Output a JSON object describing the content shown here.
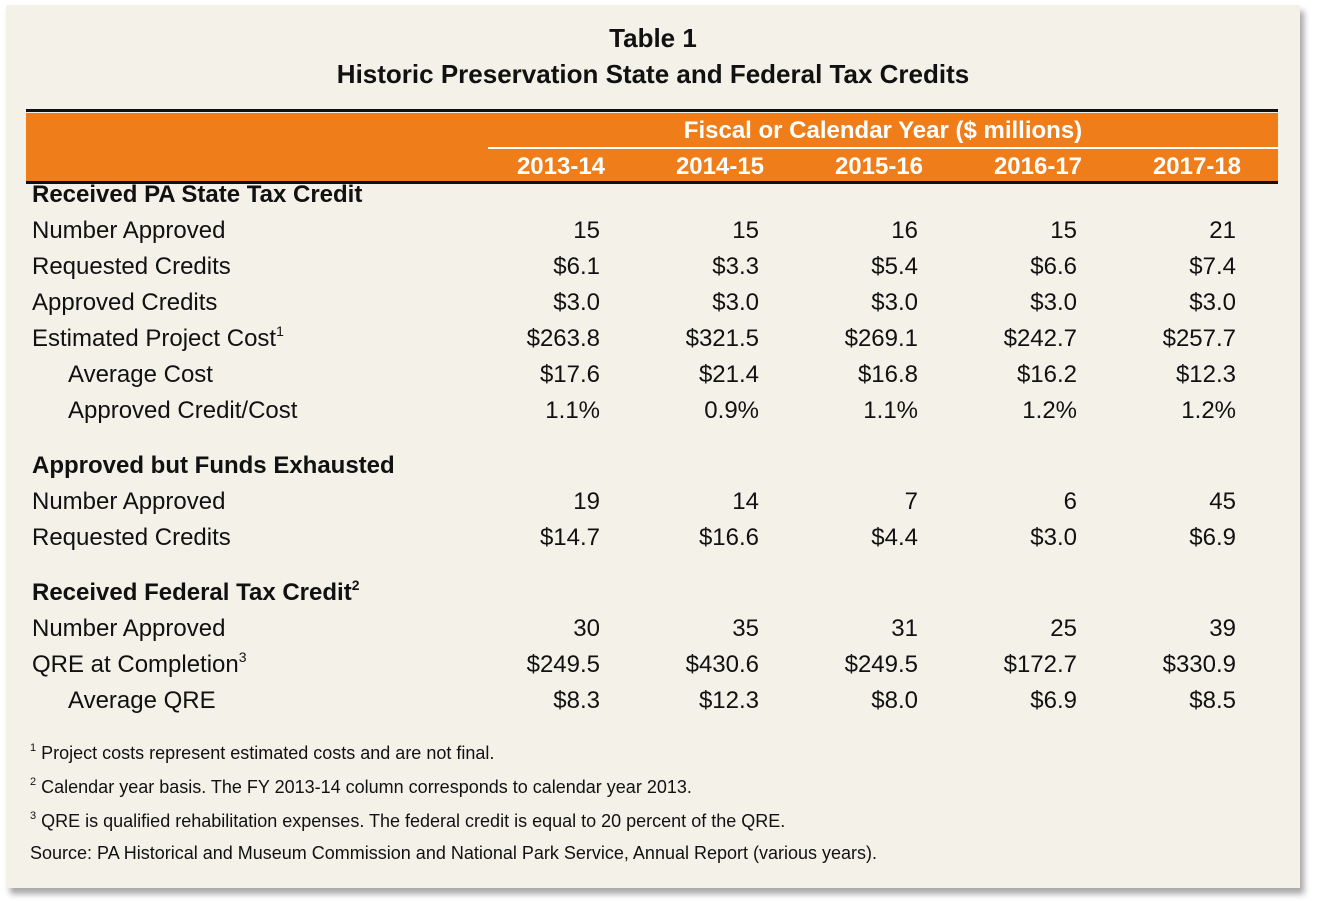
{
  "title": "Table 1",
  "subtitle": "Historic Preservation State and Federal Tax Credits",
  "header": {
    "span_label": "Fiscal or Calendar Year ($ millions)",
    "years": [
      "2013-14",
      "2014-15",
      "2015-16",
      "2016-17",
      "2017-18"
    ]
  },
  "sections": [
    {
      "heading": "Received PA State Tax Credit",
      "heading_sup": "",
      "rows": [
        {
          "label": "Number Approved",
          "sup": "",
          "indent": false,
          "values": [
            "15",
            "15",
            "16",
            "15",
            "21"
          ]
        },
        {
          "label": "Requested Credits",
          "sup": "",
          "indent": false,
          "values": [
            "$6.1",
            "$3.3",
            "$5.4",
            "$6.6",
            "$7.4"
          ]
        },
        {
          "label": "Approved Credits",
          "sup": "",
          "indent": false,
          "values": [
            "$3.0",
            "$3.0",
            "$3.0",
            "$3.0",
            "$3.0"
          ]
        },
        {
          "label": "Estimated Project Cost",
          "sup": "1",
          "indent": false,
          "values": [
            "$263.8",
            "$321.5",
            "$269.1",
            "$242.7",
            "$257.7"
          ]
        },
        {
          "label": "Average Cost",
          "sup": "",
          "indent": true,
          "values": [
            "$17.6",
            "$21.4",
            "$16.8",
            "$16.2",
            "$12.3"
          ]
        },
        {
          "label": "Approved Credit/Cost",
          "sup": "",
          "indent": true,
          "values": [
            "1.1%",
            "0.9%",
            "1.1%",
            "1.2%",
            "1.2%"
          ]
        }
      ]
    },
    {
      "heading": "Approved but Funds Exhausted",
      "heading_sup": "",
      "rows": [
        {
          "label": "Number Approved",
          "sup": "",
          "indent": false,
          "values": [
            "19",
            "14",
            "7",
            "6",
            "45"
          ]
        },
        {
          "label": "Requested Credits",
          "sup": "",
          "indent": false,
          "values": [
            "$14.7",
            "$16.6",
            "$4.4",
            "$3.0",
            "$6.9"
          ]
        }
      ]
    },
    {
      "heading": "Received Federal Tax Credit",
      "heading_sup": "2",
      "rows": [
        {
          "label": "Number Approved",
          "sup": "",
          "indent": false,
          "values": [
            "30",
            "35",
            "31",
            "25",
            "39"
          ]
        },
        {
          "label": "QRE at Completion",
          "sup": "3",
          "indent": false,
          "values": [
            "$249.5",
            "$430.6",
            "$249.5",
            "$172.7",
            "$330.9"
          ]
        },
        {
          "label": "Average QRE",
          "sup": "",
          "indent": true,
          "values": [
            "$8.3",
            "$12.3",
            "$8.0",
            "$6.9",
            "$8.5"
          ]
        }
      ]
    }
  ],
  "footnotes": [
    {
      "sup": "1",
      "text": "Project costs represent estimated costs and are not final."
    },
    {
      "sup": "2",
      "text": "Calendar year basis. The FY 2013-14 column corresponds to calendar year 2013."
    },
    {
      "sup": "3",
      "text": "QRE is qualified rehabilitation expenses. The federal credit is equal to 20 percent of the QRE."
    },
    {
      "sup": "",
      "text": "Source: PA Historical and Museum Commission and National Park Service, Annual Report (various years)."
    }
  ],
  "colors": {
    "header_bg": "#ef7e1a",
    "card_bg": "#f3f1e8",
    "header_text": "#ffffff"
  }
}
